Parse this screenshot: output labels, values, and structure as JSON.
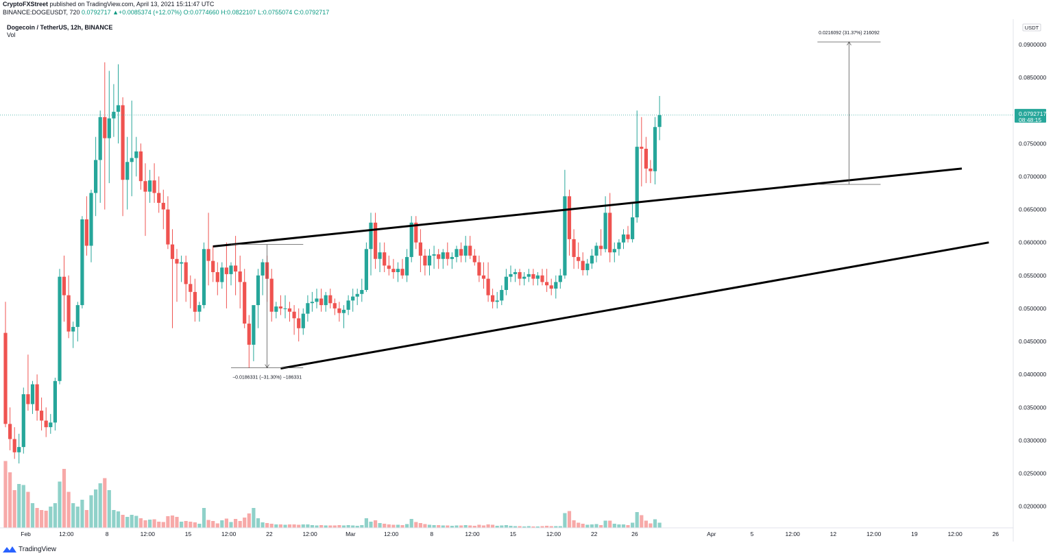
{
  "header": {
    "author": "CryptoFXStreet",
    "published": " published on TradingView.com, April 13, 2021 15:11:47 UTC",
    "symbol_line": "BINANCE:DOGEUSDT, 720",
    "change": "0.0792717  ▲+0.0085374 (+12.07%)",
    "ohlc": "O:0.0774660  H:0.0822107  L:0.0755074  C:0.0792717"
  },
  "title": "Dogecoin / TetherUS, 12h, BINANCE",
  "vol_label": "Vol",
  "footer_brand": "TradingView",
  "colors": {
    "up": "#26a69a",
    "down": "#ef5350",
    "up_vol": "#8fd1c9",
    "down_vol": "#f7a9a8",
    "price_line": "#26a69a",
    "text": "#131722"
  },
  "chart_data": {
    "type": "candlestick",
    "title": "Dogecoin / TetherUS, 12h, BINANCE",
    "quote_currency": "USDT",
    "ylim": [
      0.0155,
      0.0955
    ],
    "y_ticks": [
      "0.0200000",
      "0.0250000",
      "0.0300000",
      "0.0350000",
      "0.0400000",
      "0.0450000",
      "0.0500000",
      "0.0550000",
      "0.0600000",
      "0.0650000",
      "0.0700000",
      "0.0750000",
      "0.0850000",
      "0.0900000"
    ],
    "x_ticks": [
      {
        "label": "Feb",
        "i": 4.5
      },
      {
        "label": "12:00",
        "i": 13.5
      },
      {
        "label": "8",
        "i": 22.5
      },
      {
        "label": "12:00",
        "i": 31.5
      },
      {
        "label": "15",
        "i": 40.5
      },
      {
        "label": "12:00",
        "i": 49.5
      },
      {
        "label": "22",
        "i": 58.5
      },
      {
        "label": "12:00",
        "i": 67.5
      },
      {
        "label": "Mar",
        "i": 76.5
      },
      {
        "label": "12:00",
        "i": 85.5
      },
      {
        "label": "8",
        "i": 94.5
      },
      {
        "label": "12:00",
        "i": 103.5
      },
      {
        "label": "15",
        "i": 112.5
      },
      {
        "label": "12:00",
        "i": 121.5
      },
      {
        "label": "22",
        "i": 130.5
      },
      {
        "label": "26",
        "i": 139.5
      },
      {
        "label": "Apr",
        "i": 156.5
      },
      {
        "label": "5",
        "i": 165.5
      },
      {
        "label": "12:00",
        "i": 174.5
      },
      {
        "label": "12",
        "i": 183.5
      },
      {
        "label": "12:00",
        "i": 192.5
      },
      {
        "label": "19",
        "i": 201.5
      },
      {
        "label": "12:00",
        "i": 210.5
      },
      {
        "label": "26",
        "i": 219.5
      }
    ],
    "last_price": "0.0792717",
    "countdown": "08:48:15",
    "measure_up": {
      "text": "0.0216092 (31.37%) 216092",
      "i0": 180,
      "i1": 194,
      "i_arrow": 187,
      "from": 0.0688,
      "to": 0.0904
    },
    "measure_down": {
      "text": "−0.0186331 (−31.30%) −186331",
      "i0": 50,
      "i1": 66,
      "i_arrow": 58,
      "from": 0.0597,
      "to": 0.041
    },
    "trendlines": [
      {
        "name": "upper",
        "i0": 46,
        "p0": 0.0594,
        "i1": 212,
        "p1": 0.0712
      },
      {
        "name": "lower",
        "i0": 61,
        "p0": 0.0409,
        "i1": 218,
        "p1": 0.06
      }
    ],
    "candles": [
      [
        0.0463,
        0.051,
        0.032,
        0.0325,
        1.95
      ],
      [
        0.0325,
        0.035,
        0.0285,
        0.0302,
        1.62
      ],
      [
        0.0302,
        0.032,
        0.0272,
        0.0282,
        1.1
      ],
      [
        0.0282,
        0.031,
        0.0265,
        0.029,
        1.28
      ],
      [
        0.029,
        0.038,
        0.028,
        0.037,
        1.25
      ],
      [
        0.037,
        0.043,
        0.0345,
        0.0355,
        1.05
      ],
      [
        0.0355,
        0.039,
        0.034,
        0.0385,
        0.72
      ],
      [
        0.0385,
        0.04,
        0.033,
        0.0345,
        0.58
      ],
      [
        0.0345,
        0.0365,
        0.0315,
        0.033,
        0.52
      ],
      [
        0.033,
        0.035,
        0.0305,
        0.032,
        0.5
      ],
      [
        0.032,
        0.034,
        0.031,
        0.0327,
        0.62
      ],
      [
        0.0327,
        0.0395,
        0.0315,
        0.039,
        0.72
      ],
      [
        0.039,
        0.056,
        0.0385,
        0.0548,
        1.35
      ],
      [
        0.0548,
        0.058,
        0.048,
        0.052,
        1.72
      ],
      [
        0.052,
        0.055,
        0.0455,
        0.0465,
        1.05
      ],
      [
        0.0465,
        0.048,
        0.044,
        0.0472,
        0.72
      ],
      [
        0.0472,
        0.051,
        0.045,
        0.0505,
        0.62
      ],
      [
        0.0505,
        0.064,
        0.05,
        0.0635,
        0.82
      ],
      [
        0.0635,
        0.067,
        0.058,
        0.0595,
        0.52
      ],
      [
        0.0595,
        0.068,
        0.057,
        0.0675,
        0.95
      ],
      [
        0.0675,
        0.076,
        0.064,
        0.0725,
        1.12
      ],
      [
        0.0725,
        0.08,
        0.066,
        0.079,
        1.3
      ],
      [
        0.079,
        0.0873,
        0.065,
        0.0758,
        1.45
      ],
      [
        0.0758,
        0.086,
        0.069,
        0.0788,
        1.1
      ],
      [
        0.0788,
        0.084,
        0.076,
        0.0798,
        0.52
      ],
      [
        0.0798,
        0.087,
        0.075,
        0.0808,
        0.48
      ],
      [
        0.0808,
        0.082,
        0.064,
        0.0695,
        0.38
      ],
      [
        0.0695,
        0.076,
        0.065,
        0.0722,
        0.32
      ],
      [
        0.0722,
        0.0815,
        0.067,
        0.0728,
        0.38
      ],
      [
        0.0728,
        0.076,
        0.07,
        0.0738,
        0.35
      ],
      [
        0.0738,
        0.075,
        0.068,
        0.0693,
        0.28
      ],
      [
        0.0693,
        0.072,
        0.061,
        0.0677,
        0.22
      ],
      [
        0.0677,
        0.071,
        0.066,
        0.0694,
        0.24
      ],
      [
        0.0694,
        0.072,
        0.066,
        0.0675,
        0.25
      ],
      [
        0.0675,
        0.07,
        0.0645,
        0.066,
        0.18
      ],
      [
        0.066,
        0.068,
        0.062,
        0.065,
        0.17
      ],
      [
        0.065,
        0.067,
        0.059,
        0.0597,
        0.34
      ],
      [
        0.0597,
        0.062,
        0.047,
        0.0575,
        0.36
      ],
      [
        0.0575,
        0.059,
        0.051,
        0.0568,
        0.32
      ],
      [
        0.0568,
        0.058,
        0.054,
        0.057,
        0.18
      ],
      [
        0.057,
        0.058,
        0.051,
        0.0537,
        0.2
      ],
      [
        0.0537,
        0.055,
        0.05,
        0.0525,
        0.18
      ],
      [
        0.0525,
        0.0545,
        0.048,
        0.0495,
        0.16
      ],
      [
        0.0495,
        0.051,
        0.048,
        0.0505,
        0.12
      ],
      [
        0.0505,
        0.06,
        0.05,
        0.059,
        0.58
      ],
      [
        0.059,
        0.0645,
        0.0535,
        0.0572,
        0.23
      ],
      [
        0.0572,
        0.0595,
        0.054,
        0.0555,
        0.2
      ],
      [
        0.0555,
        0.057,
        0.052,
        0.054,
        0.13
      ],
      [
        0.054,
        0.057,
        0.053,
        0.0562,
        0.22
      ],
      [
        0.0562,
        0.06,
        0.05,
        0.0552,
        0.27
      ],
      [
        0.0552,
        0.057,
        0.0535,
        0.0565,
        0.17
      ],
      [
        0.0565,
        0.061,
        0.052,
        0.0556,
        0.26
      ],
      [
        0.0556,
        0.058,
        0.05,
        0.054,
        0.2
      ],
      [
        0.054,
        0.056,
        0.047,
        0.0477,
        0.3
      ],
      [
        0.0477,
        0.049,
        0.041,
        0.0445,
        0.42
      ],
      [
        0.0445,
        0.05,
        0.042,
        0.0505,
        0.58
      ],
      [
        0.0505,
        0.056,
        0.047,
        0.055,
        0.28
      ],
      [
        0.055,
        0.0575,
        0.052,
        0.057,
        0.16
      ],
      [
        0.057,
        0.058,
        0.051,
        0.0545,
        0.14
      ],
      [
        0.0545,
        0.056,
        0.048,
        0.0495,
        0.12
      ],
      [
        0.0495,
        0.051,
        0.0485,
        0.0503,
        0.1
      ],
      [
        0.0503,
        0.052,
        0.049,
        0.05,
        0.1
      ],
      [
        0.05,
        0.052,
        0.0485,
        0.05,
        0.09
      ],
      [
        0.05,
        0.051,
        0.048,
        0.0495,
        0.1
      ],
      [
        0.0495,
        0.0505,
        0.046,
        0.0485,
        0.1
      ],
      [
        0.0485,
        0.05,
        0.045,
        0.047,
        0.09
      ],
      [
        0.047,
        0.05,
        0.046,
        0.0492,
        0.1
      ],
      [
        0.0492,
        0.052,
        0.048,
        0.0508,
        0.1
      ],
      [
        0.0508,
        0.0525,
        0.0495,
        0.051,
        0.08
      ],
      [
        0.051,
        0.053,
        0.05,
        0.0515,
        0.07
      ],
      [
        0.0515,
        0.053,
        0.0495,
        0.0505,
        0.08
      ],
      [
        0.0505,
        0.0525,
        0.0495,
        0.052,
        0.07
      ],
      [
        0.052,
        0.053,
        0.05,
        0.0508,
        0.07
      ],
      [
        0.0508,
        0.0515,
        0.049,
        0.05,
        0.07
      ],
      [
        0.05,
        0.051,
        0.048,
        0.0493,
        0.08
      ],
      [
        0.0493,
        0.0505,
        0.047,
        0.0498,
        0.07
      ],
      [
        0.0498,
        0.052,
        0.049,
        0.0512,
        0.08
      ],
      [
        0.0512,
        0.053,
        0.0495,
        0.0518,
        0.07
      ],
      [
        0.0518,
        0.053,
        0.0505,
        0.0522,
        0.06
      ],
      [
        0.0522,
        0.0545,
        0.051,
        0.0528,
        0.08
      ],
      [
        0.0528,
        0.06,
        0.0525,
        0.059,
        0.28
      ],
      [
        0.059,
        0.0645,
        0.055,
        0.063,
        0.18
      ],
      [
        0.063,
        0.0645,
        0.056,
        0.0575,
        0.22
      ],
      [
        0.0575,
        0.06,
        0.0555,
        0.0585,
        0.14
      ],
      [
        0.0585,
        0.06,
        0.0555,
        0.0565,
        0.12
      ],
      [
        0.0565,
        0.058,
        0.055,
        0.056,
        0.1
      ],
      [
        0.056,
        0.0575,
        0.0545,
        0.0555,
        0.09
      ],
      [
        0.0555,
        0.057,
        0.054,
        0.056,
        0.09
      ],
      [
        0.056,
        0.0575,
        0.0545,
        0.055,
        0.08
      ],
      [
        0.055,
        0.059,
        0.054,
        0.0578,
        0.11
      ],
      [
        0.0578,
        0.064,
        0.057,
        0.063,
        0.26
      ],
      [
        0.063,
        0.064,
        0.059,
        0.06,
        0.17
      ],
      [
        0.06,
        0.062,
        0.0555,
        0.058,
        0.14
      ],
      [
        0.058,
        0.059,
        0.055,
        0.0565,
        0.11
      ],
      [
        0.0565,
        0.059,
        0.055,
        0.058,
        0.09
      ],
      [
        0.058,
        0.0595,
        0.056,
        0.0582,
        0.08
      ],
      [
        0.0582,
        0.059,
        0.056,
        0.0575,
        0.08
      ],
      [
        0.0575,
        0.059,
        0.056,
        0.0585,
        0.07
      ],
      [
        0.0585,
        0.06,
        0.0565,
        0.0575,
        0.07
      ],
      [
        0.0575,
        0.0585,
        0.056,
        0.0578,
        0.06
      ],
      [
        0.0578,
        0.0595,
        0.057,
        0.059,
        0.07
      ],
      [
        0.059,
        0.06,
        0.057,
        0.058,
        0.07
      ],
      [
        0.058,
        0.061,
        0.057,
        0.0595,
        0.08
      ],
      [
        0.0595,
        0.061,
        0.0575,
        0.058,
        0.07
      ],
      [
        0.058,
        0.059,
        0.0565,
        0.057,
        0.06
      ],
      [
        0.057,
        0.058,
        0.054,
        0.055,
        0.09
      ],
      [
        0.055,
        0.057,
        0.053,
        0.0545,
        0.07
      ],
      [
        0.0545,
        0.057,
        0.051,
        0.052,
        0.1
      ],
      [
        0.052,
        0.053,
        0.05,
        0.051,
        0.09
      ],
      [
        0.051,
        0.0525,
        0.05,
        0.0512,
        0.06
      ],
      [
        0.0512,
        0.0535,
        0.0505,
        0.0528,
        0.07
      ],
      [
        0.0528,
        0.056,
        0.052,
        0.0548,
        0.08
      ],
      [
        0.0548,
        0.0565,
        0.054,
        0.0552,
        0.06
      ],
      [
        0.0552,
        0.056,
        0.054,
        0.0555,
        0.05
      ],
      [
        0.0555,
        0.056,
        0.0535,
        0.0545,
        0.05
      ],
      [
        0.0545,
        0.0555,
        0.0535,
        0.0548,
        0.04
      ],
      [
        0.0548,
        0.056,
        0.054,
        0.0552,
        0.05
      ],
      [
        0.0552,
        0.056,
        0.0535,
        0.0545,
        0.04
      ],
      [
        0.0545,
        0.0555,
        0.0535,
        0.055,
        0.04
      ],
      [
        0.055,
        0.056,
        0.0535,
        0.054,
        0.05
      ],
      [
        0.054,
        0.056,
        0.0525,
        0.0535,
        0.06
      ],
      [
        0.0535,
        0.0545,
        0.052,
        0.053,
        0.05
      ],
      [
        0.053,
        0.055,
        0.0515,
        0.054,
        0.05
      ],
      [
        0.054,
        0.056,
        0.053,
        0.055,
        0.05
      ],
      [
        0.055,
        0.071,
        0.0545,
        0.067,
        0.43
      ],
      [
        0.067,
        0.068,
        0.058,
        0.0605,
        0.49
      ],
      [
        0.0605,
        0.062,
        0.056,
        0.0578,
        0.22
      ],
      [
        0.0578,
        0.06,
        0.056,
        0.0572,
        0.15
      ],
      [
        0.0572,
        0.0585,
        0.055,
        0.0558,
        0.12
      ],
      [
        0.0558,
        0.0575,
        0.055,
        0.0568,
        0.09
      ],
      [
        0.0568,
        0.059,
        0.056,
        0.058,
        0.1
      ],
      [
        0.058,
        0.06,
        0.057,
        0.0595,
        0.11
      ],
      [
        0.0595,
        0.062,
        0.058,
        0.059,
        0.08
      ],
      [
        0.059,
        0.067,
        0.0585,
        0.0645,
        0.21
      ],
      [
        0.0645,
        0.0675,
        0.057,
        0.0585,
        0.21
      ],
      [
        0.0585,
        0.06,
        0.057,
        0.059,
        0.12
      ],
      [
        0.059,
        0.0605,
        0.058,
        0.06,
        0.1
      ],
      [
        0.06,
        0.062,
        0.059,
        0.0612,
        0.1
      ],
      [
        0.0612,
        0.0625,
        0.06,
        0.0605,
        0.08
      ],
      [
        0.0605,
        0.066,
        0.06,
        0.0638,
        0.15
      ],
      [
        0.0638,
        0.08,
        0.063,
        0.0745,
        0.46
      ],
      [
        0.0745,
        0.079,
        0.0685,
        0.0742,
        0.37
      ],
      [
        0.0742,
        0.076,
        0.069,
        0.0712,
        0.21
      ],
      [
        0.0712,
        0.0725,
        0.069,
        0.0708,
        0.13
      ],
      [
        0.0708,
        0.079,
        0.0688,
        0.0775,
        0.25
      ],
      [
        0.0775,
        0.0822,
        0.0755,
        0.0793,
        0.15
      ]
    ]
  }
}
